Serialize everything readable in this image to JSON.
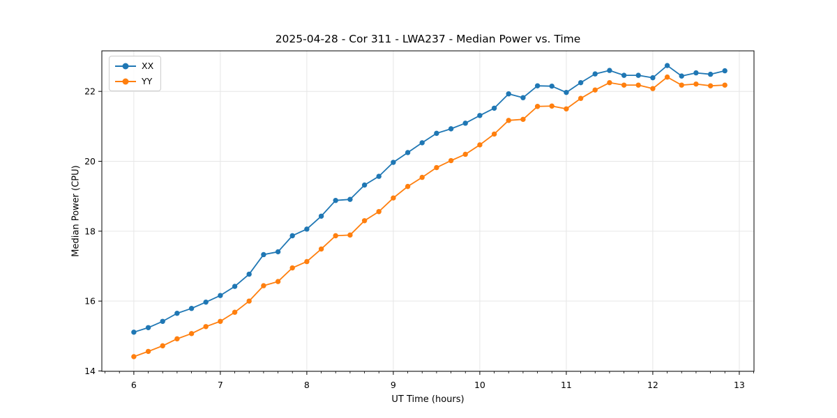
{
  "chart_data": {
    "type": "line",
    "title": "2025-04-28 - Cor 311 - LWA237 - Median Power vs. Time",
    "xlabel": "UT Time (hours)",
    "ylabel": "Median Power (CPU)",
    "xlim": [
      5.63,
      13.17
    ],
    "ylim": [
      13.99,
      23.16
    ],
    "xticks": [
      6,
      7,
      8,
      9,
      10,
      11,
      12,
      13
    ],
    "yticks": [
      14,
      16,
      18,
      20,
      22
    ],
    "x_minor_step": 0.166667,
    "grid": true,
    "grid_color": "#e6e6e6",
    "spine_color": "#000000",
    "legend_position": "upper-left",
    "x": [
      6.0,
      6.167,
      6.333,
      6.5,
      6.667,
      6.833,
      7.0,
      7.167,
      7.333,
      7.5,
      7.667,
      7.833,
      8.0,
      8.167,
      8.333,
      8.5,
      8.667,
      8.833,
      9.0,
      9.167,
      9.333,
      9.5,
      9.667,
      9.833,
      10.0,
      10.167,
      10.333,
      10.5,
      10.667,
      10.833,
      11.0,
      11.167,
      11.333,
      11.5,
      11.667,
      11.833,
      12.0,
      12.167,
      12.333,
      12.5,
      12.667,
      12.833
    ],
    "series": [
      {
        "name": "XX",
        "color": "#1f77b4",
        "values": [
          15.11,
          15.24,
          15.42,
          15.65,
          15.79,
          15.97,
          16.16,
          16.42,
          16.77,
          17.33,
          17.41,
          17.87,
          18.06,
          18.43,
          18.88,
          18.91,
          19.32,
          19.57,
          19.97,
          20.25,
          20.53,
          20.8,
          20.93,
          21.09,
          21.31,
          21.52,
          21.93,
          21.82,
          22.16,
          22.15,
          21.97,
          22.25,
          22.5,
          22.6,
          22.46,
          22.46,
          22.39,
          22.74,
          22.44,
          22.53,
          22.49,
          22.59
        ]
      },
      {
        "name": "YY",
        "color": "#ff7f0e",
        "values": [
          14.41,
          14.56,
          14.72,
          14.92,
          15.07,
          15.27,
          15.42,
          15.68,
          16.0,
          16.44,
          16.56,
          16.95,
          17.13,
          17.49,
          17.87,
          17.89,
          18.3,
          18.56,
          18.95,
          19.28,
          19.54,
          19.82,
          20.02,
          20.2,
          20.47,
          20.78,
          21.17,
          21.2,
          21.57,
          21.58,
          21.5,
          21.8,
          22.04,
          22.25,
          22.18,
          22.18,
          22.08,
          22.41,
          22.18,
          22.21,
          22.16,
          22.18
        ]
      }
    ]
  }
}
